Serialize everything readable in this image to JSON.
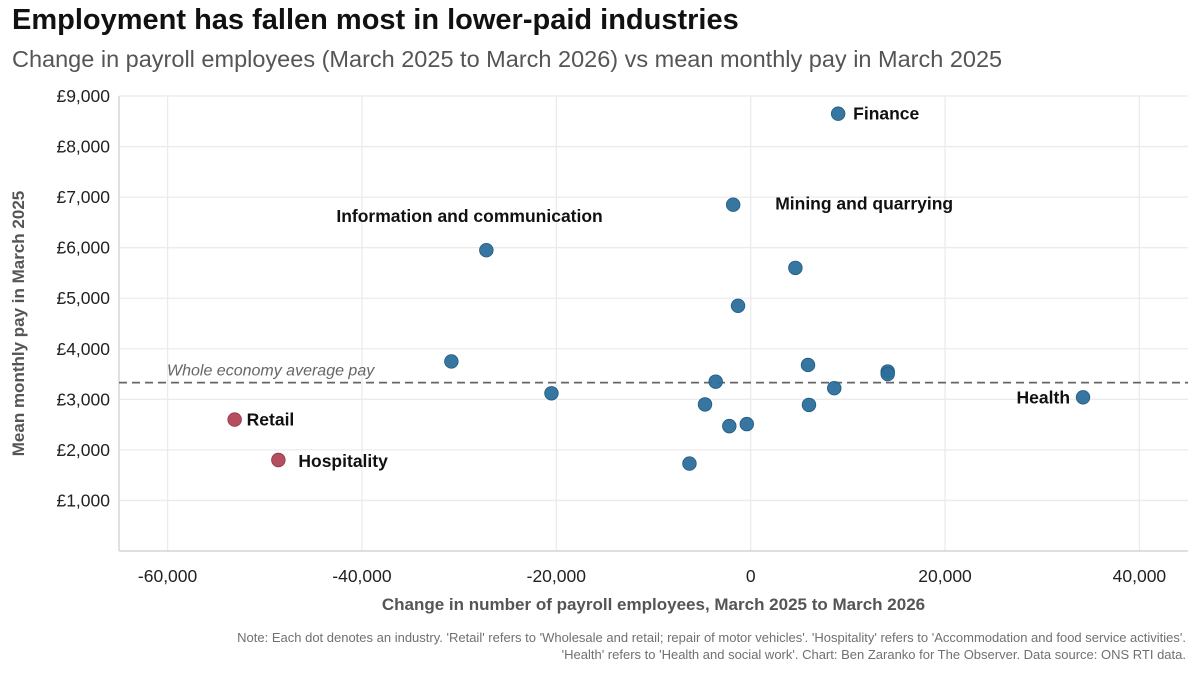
{
  "title": "Employment has fallen most in lower-paid industries",
  "subtitle": "Change in payroll employees (March 2025 to March 2026) vs mean monthly pay in March 2025",
  "note_line1": "Note: Each dot denotes an industry. 'Retail' refers to 'Wholesale and retail; repair of motor vehicles'. 'Hospitality' refers to 'Accommodation and food service activities'.",
  "note_line2": "'Health' refers to 'Health and social work'. Chart: Ben Zaranko for The Observer. Data source: ONS RTI data.",
  "colors": {
    "highlight": "#b2455a",
    "default": "#2b6f9c",
    "reference_line": "#666666"
  },
  "chart_data": {
    "type": "scatter",
    "xlabel": "Change in number of payroll employees, March 2025 to March 2026",
    "ylabel": "Mean monthly pay in March 2025",
    "xlim": [
      -65000,
      45000
    ],
    "ylim": [
      0,
      9000
    ],
    "x_ticks": [
      -60000,
      -40000,
      -20000,
      0,
      20000,
      40000
    ],
    "x_tick_labels": [
      "-60,000",
      "-40,000",
      "-20,000",
      "0",
      "20,000",
      "40,000"
    ],
    "y_ticks": [
      1000,
      2000,
      3000,
      4000,
      5000,
      6000,
      7000,
      8000,
      9000
    ],
    "y_tick_labels": [
      "£1,000",
      "£2,000",
      "£3,000",
      "£4,000",
      "£5,000",
      "£6,000",
      "£7,000",
      "£8,000",
      "£9,000"
    ],
    "grid": true,
    "reference_line": {
      "y": 3330,
      "label": "Whole economy average pay"
    },
    "points": [
      {
        "x": 9000,
        "y": 8650,
        "label": "Finance",
        "highlight": false
      },
      {
        "x": -1800,
        "y": 6850,
        "label": "Mining and quarrying",
        "highlight": false
      },
      {
        "x": -27200,
        "y": 5950,
        "label": "Information and communication",
        "highlight": false
      },
      {
        "x": 4600,
        "y": 5600,
        "label": "",
        "highlight": false
      },
      {
        "x": -1300,
        "y": 4850,
        "label": "",
        "highlight": false
      },
      {
        "x": -30800,
        "y": 3750,
        "label": "",
        "highlight": false
      },
      {
        "x": 5900,
        "y": 3680,
        "label": "",
        "highlight": false
      },
      {
        "x": 14100,
        "y": 3550,
        "label": "",
        "highlight": false
      },
      {
        "x": 14100,
        "y": 3500,
        "label": "",
        "highlight": false
      },
      {
        "x": -3600,
        "y": 3350,
        "label": "",
        "highlight": false
      },
      {
        "x": 8600,
        "y": 3220,
        "label": "",
        "highlight": false
      },
      {
        "x": -20500,
        "y": 3120,
        "label": "",
        "highlight": false
      },
      {
        "x": 34200,
        "y": 3040,
        "label": "Health",
        "highlight": false
      },
      {
        "x": -4700,
        "y": 2900,
        "label": "",
        "highlight": false
      },
      {
        "x": 6000,
        "y": 2890,
        "label": "",
        "highlight": false
      },
      {
        "x": -53100,
        "y": 2600,
        "label": "Retail",
        "highlight": true
      },
      {
        "x": -400,
        "y": 2510,
        "label": "",
        "highlight": false
      },
      {
        "x": -2200,
        "y": 2470,
        "label": "",
        "highlight": false
      },
      {
        "x": -48600,
        "y": 1800,
        "label": "Hospitality",
        "highlight": true
      },
      {
        "x": -6300,
        "y": 1730,
        "label": "",
        "highlight": false
      }
    ]
  }
}
